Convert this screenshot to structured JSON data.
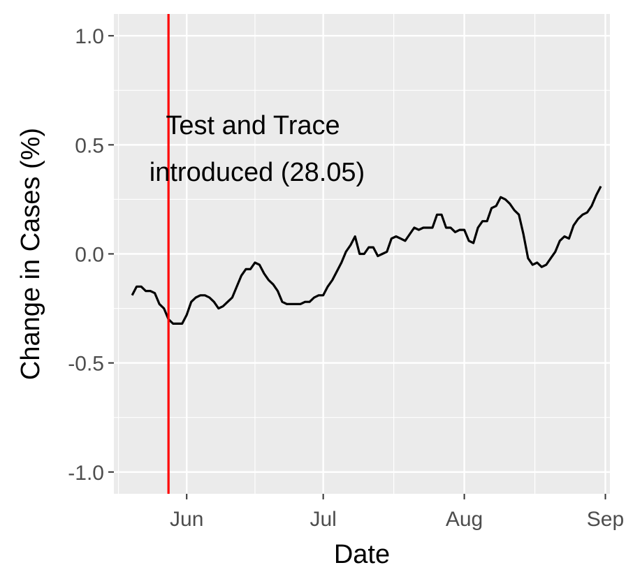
{
  "chart_data": {
    "type": "line",
    "title": "",
    "xlabel": "Date",
    "ylabel": "Change in Cases (%)",
    "x_ticks": [
      {
        "date": "2020-06-01",
        "label": "Jun"
      },
      {
        "date": "2020-07-01",
        "label": "Jul"
      },
      {
        "date": "2020-08-01",
        "label": "Aug"
      },
      {
        "date": "2020-09-01",
        "label": "Sep"
      }
    ],
    "y_ticks": [
      {
        "value": 1.0,
        "label": "1.0"
      },
      {
        "value": 0.5,
        "label": "0.5"
      },
      {
        "value": 0.0,
        "label": "0.0"
      },
      {
        "value": -0.5,
        "label": "-0.5"
      },
      {
        "value": -1.0,
        "label": "-1.0"
      }
    ],
    "xlim": [
      "2020-05-16",
      "2020-09-02"
    ],
    "ylim": [
      -1.1,
      1.1
    ],
    "grid": true,
    "background": "#ebebeb",
    "series": [
      {
        "color": "#000000",
        "points": [
          [
            "2020-05-20",
            -0.19
          ],
          [
            "2020-05-21",
            -0.15
          ],
          [
            "2020-05-22",
            -0.15
          ],
          [
            "2020-05-23",
            -0.17
          ],
          [
            "2020-05-24",
            -0.17
          ],
          [
            "2020-05-25",
            -0.18
          ],
          [
            "2020-05-26",
            -0.23
          ],
          [
            "2020-05-27",
            -0.25
          ],
          [
            "2020-05-28",
            -0.3
          ],
          [
            "2020-05-29",
            -0.32
          ],
          [
            "2020-05-30",
            -0.32
          ],
          [
            "2020-05-31",
            -0.32
          ],
          [
            "2020-06-01",
            -0.28
          ],
          [
            "2020-06-02",
            -0.22
          ],
          [
            "2020-06-03",
            -0.2
          ],
          [
            "2020-06-04",
            -0.19
          ],
          [
            "2020-06-05",
            -0.19
          ],
          [
            "2020-06-06",
            -0.2
          ],
          [
            "2020-06-07",
            -0.22
          ],
          [
            "2020-06-08",
            -0.25
          ],
          [
            "2020-06-09",
            -0.24
          ],
          [
            "2020-06-10",
            -0.22
          ],
          [
            "2020-06-11",
            -0.2
          ],
          [
            "2020-06-12",
            -0.15
          ],
          [
            "2020-06-13",
            -0.1
          ],
          [
            "2020-06-14",
            -0.07
          ],
          [
            "2020-06-15",
            -0.07
          ],
          [
            "2020-06-16",
            -0.04
          ],
          [
            "2020-06-17",
            -0.05
          ],
          [
            "2020-06-18",
            -0.09
          ],
          [
            "2020-06-19",
            -0.12
          ],
          [
            "2020-06-20",
            -0.14
          ],
          [
            "2020-06-21",
            -0.17
          ],
          [
            "2020-06-22",
            -0.22
          ],
          [
            "2020-06-23",
            -0.23
          ],
          [
            "2020-06-24",
            -0.23
          ],
          [
            "2020-06-25",
            -0.23
          ],
          [
            "2020-06-26",
            -0.23
          ],
          [
            "2020-06-27",
            -0.22
          ],
          [
            "2020-06-28",
            -0.22
          ],
          [
            "2020-06-29",
            -0.2
          ],
          [
            "2020-06-30",
            -0.19
          ],
          [
            "2020-07-01",
            -0.19
          ],
          [
            "2020-07-02",
            -0.15
          ],
          [
            "2020-07-03",
            -0.12
          ],
          [
            "2020-07-04",
            -0.08
          ],
          [
            "2020-07-05",
            -0.04
          ],
          [
            "2020-07-06",
            0.01
          ],
          [
            "2020-07-07",
            0.04
          ],
          [
            "2020-07-08",
            0.08
          ],
          [
            "2020-07-09",
            0.0
          ],
          [
            "2020-07-10",
            0.0
          ],
          [
            "2020-07-11",
            0.03
          ],
          [
            "2020-07-12",
            0.03
          ],
          [
            "2020-07-13",
            -0.01
          ],
          [
            "2020-07-14",
            0.0
          ],
          [
            "2020-07-15",
            0.01
          ],
          [
            "2020-07-16",
            0.07
          ],
          [
            "2020-07-17",
            0.08
          ],
          [
            "2020-07-18",
            0.07
          ],
          [
            "2020-07-19",
            0.06
          ],
          [
            "2020-07-20",
            0.09
          ],
          [
            "2020-07-21",
            0.12
          ],
          [
            "2020-07-22",
            0.11
          ],
          [
            "2020-07-23",
            0.12
          ],
          [
            "2020-07-24",
            0.12
          ],
          [
            "2020-07-25",
            0.12
          ],
          [
            "2020-07-26",
            0.18
          ],
          [
            "2020-07-27",
            0.18
          ],
          [
            "2020-07-28",
            0.12
          ],
          [
            "2020-07-29",
            0.12
          ],
          [
            "2020-07-30",
            0.1
          ],
          [
            "2020-07-31",
            0.11
          ],
          [
            "2020-08-01",
            0.11
          ],
          [
            "2020-08-02",
            0.06
          ],
          [
            "2020-08-03",
            0.05
          ],
          [
            "2020-08-04",
            0.12
          ],
          [
            "2020-08-05",
            0.15
          ],
          [
            "2020-08-06",
            0.15
          ],
          [
            "2020-08-07",
            0.21
          ],
          [
            "2020-08-08",
            0.22
          ],
          [
            "2020-08-09",
            0.26
          ],
          [
            "2020-08-10",
            0.25
          ],
          [
            "2020-08-11",
            0.23
          ],
          [
            "2020-08-12",
            0.2
          ],
          [
            "2020-08-13",
            0.18
          ],
          [
            "2020-08-14",
            0.09
          ],
          [
            "2020-08-15",
            -0.02
          ],
          [
            "2020-08-16",
            -0.05
          ],
          [
            "2020-08-17",
            -0.04
          ],
          [
            "2020-08-18",
            -0.06
          ],
          [
            "2020-08-19",
            -0.05
          ],
          [
            "2020-08-20",
            -0.02
          ],
          [
            "2020-08-21",
            0.01
          ],
          [
            "2020-08-22",
            0.06
          ],
          [
            "2020-08-23",
            0.08
          ],
          [
            "2020-08-24",
            0.07
          ],
          [
            "2020-08-25",
            0.13
          ],
          [
            "2020-08-26",
            0.16
          ],
          [
            "2020-08-27",
            0.18
          ],
          [
            "2020-08-28",
            0.19
          ],
          [
            "2020-08-29",
            0.22
          ],
          [
            "2020-08-30",
            0.27
          ],
          [
            "2020-08-31",
            0.31
          ]
        ]
      }
    ],
    "annotations": [
      {
        "type": "vline",
        "x": "2020-05-28",
        "color": "#ff0000"
      },
      {
        "type": "text",
        "lines": [
          "Test and Trace",
          "introduced (28.05)"
        ],
        "color": "#000000"
      }
    ]
  }
}
